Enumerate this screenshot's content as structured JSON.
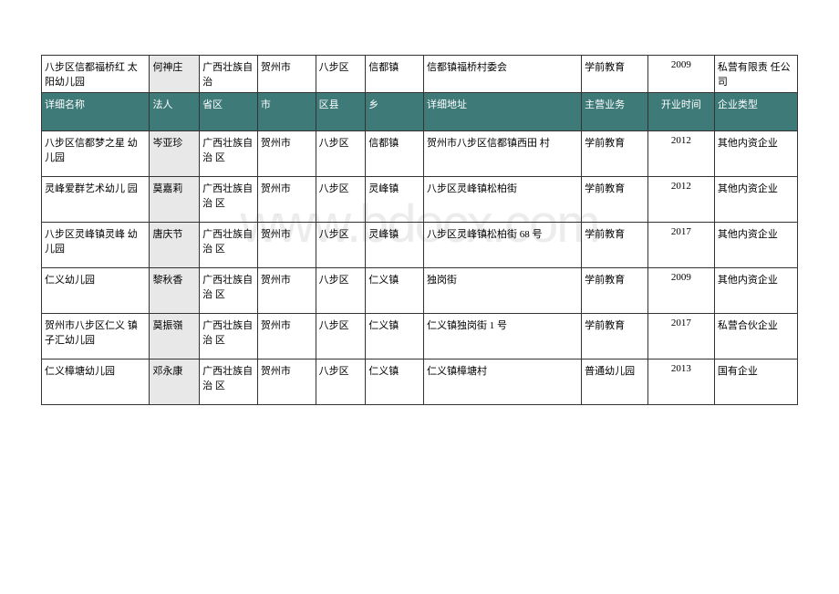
{
  "watermark": "www.bdocx.com",
  "topRow": {
    "name": "八步区信都福桥红 太阳幼儿园",
    "legal": "何神庄",
    "province": "广西壮族自治",
    "city": "贺州市",
    "county": "八步区",
    "town": "信都镇",
    "address": "信都镇福桥村委会",
    "business": "学前教育",
    "year": "2009",
    "type": "私营有限责 任公司"
  },
  "headers": {
    "name": "详细名称",
    "legal": "法人",
    "province": "省区",
    "city": "市",
    "county": "区县",
    "town": "乡",
    "address": "详细地址",
    "business": "主营业务",
    "year": "开业时间",
    "type": "企业类型"
  },
  "rows": [
    {
      "name": "八步区信都梦之星 幼儿园",
      "legal": "岑亚珍",
      "province": "广西壮族自治 区",
      "city": "贺州市",
      "county": "八步区",
      "town": "信都镇",
      "address": "贺州市八步区信都镇西田 村",
      "business": "学前教育",
      "year": "2012",
      "type": "其他内资企业"
    },
    {
      "name": "灵峰爱群艺术幼儿 园",
      "legal": "莫嘉莉",
      "province": "广西壮族自治 区",
      "city": "贺州市",
      "county": "八步区",
      "town": "灵峰镇",
      "address": "八步区灵峰镇松柏街",
      "business": "学前教育",
      "year": "2012",
      "type": "其他内资企业"
    },
    {
      "name": "八步区灵峰镇灵峰 幼儿园",
      "legal": "唐庆节",
      "province": "广西壮族自治 区",
      "city": "贺州市",
      "county": "八步区",
      "town": "灵峰镇",
      "address": "八步区灵峰镇松柏街 68 号",
      "business": "学前教育",
      "year": "2017",
      "type": "其他内资企业"
    },
    {
      "name": "仁义幼儿园",
      "legal": "黎秋香",
      "province": "广西壮族自治 区",
      "city": "贺州市",
      "county": "八步区",
      "town": "仁义镇",
      "address": "独岗街",
      "business": "学前教育",
      "year": "2009",
      "type": "其他内资企业"
    },
    {
      "name": "贺州市八步区仁义 镇子汇幼儿园",
      "legal": "莫振嶺",
      "province": "广西壮族自治 区",
      "city": "贺州市",
      "county": "八步区",
      "town": "仁义镇",
      "address": "仁义镇独岗街 1 号",
      "business": "学前教育",
      "year": "2017",
      "type": "私营合伙企业"
    },
    {
      "name": "仁义樟塘幼儿园",
      "legal": "邓永康",
      "province": "广西壮族自治 区",
      "city": "贺州市",
      "county": "八步区",
      "town": "仁义镇",
      "address": "仁义镇樟塘村",
      "business": "普通幼儿园",
      "year": "2013",
      "type": "国有企业"
    }
  ]
}
